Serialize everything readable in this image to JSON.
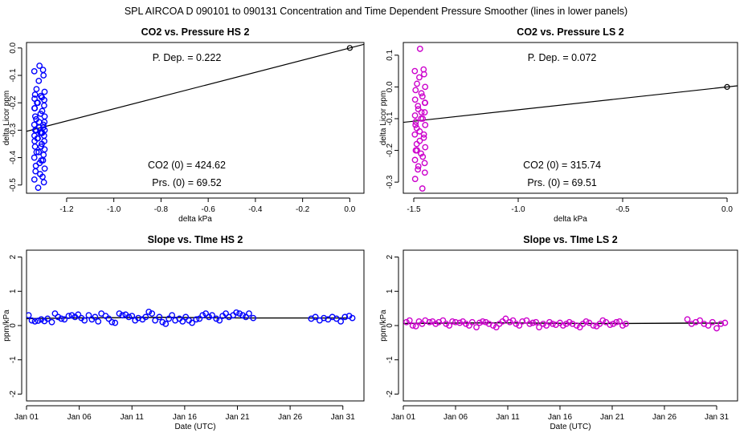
{
  "figure": {
    "title": "SPL   AIRCOA D   090101 to 090131   Concentration and Time Dependent Pressure Smoother (lines in lower panels)"
  },
  "colors": {
    "hs": "#0000ff",
    "ls": "#cc00cc",
    "line": "#000000",
    "origin": "#000000"
  },
  "chart_data": [
    {
      "type": "scatter",
      "title": "CO2 vs. Pressure HS 2",
      "xlabel": "delta kPa",
      "ylabel": "delta Licor ppm",
      "xlim": [
        -1.37,
        0.06
      ],
      "ylim": [
        -0.53,
        0.02
      ],
      "xticks": [
        -1.2,
        -1.0,
        -0.8,
        -0.6,
        -0.4,
        -0.2,
        0.0
      ],
      "xtick_labels": [
        "-1.2",
        "-1.0",
        "-0.8",
        "-0.6",
        "-0.4",
        "-0.2",
        "0.0"
      ],
      "yticks": [
        0.0,
        -0.1,
        -0.2,
        -0.3,
        -0.4,
        -0.5
      ],
      "ytick_labels": [
        "0.0",
        "-0.1",
        "-0.2",
        "-0.3",
        "-0.4",
        "-0.5"
      ],
      "slope": 0.222,
      "origin_point": [
        0.0,
        0.0
      ],
      "x_center": -1.315,
      "x_spread": 0.022,
      "y_values": [
        -0.065,
        -0.08,
        -0.085,
        -0.1,
        -0.12,
        -0.15,
        -0.16,
        -0.17,
        -0.175,
        -0.18,
        -0.185,
        -0.19,
        -0.2,
        -0.2,
        -0.21,
        -0.22,
        -0.23,
        -0.24,
        -0.25,
        -0.25,
        -0.26,
        -0.27,
        -0.28,
        -0.28,
        -0.29,
        -0.29,
        -0.3,
        -0.3,
        -0.3,
        -0.31,
        -0.31,
        -0.32,
        -0.32,
        -0.33,
        -0.33,
        -0.34,
        -0.34,
        -0.35,
        -0.36,
        -0.36,
        -0.37,
        -0.38,
        -0.38,
        -0.39,
        -0.4,
        -0.41,
        -0.42,
        -0.43,
        -0.44,
        -0.45,
        -0.46,
        -0.47,
        -0.48,
        -0.49,
        -0.51,
        -0.2,
        -0.27,
        -0.22,
        -0.31,
        -0.41
      ],
      "series_color": "hs",
      "annotations": {
        "p_dep": "P. Dep. =  0.222",
        "co2_0": "CO2 (0) =  424.62",
        "prs_0": "Prs. (0) =  69.52"
      }
    },
    {
      "type": "scatter",
      "title": "CO2 vs. Pressure LS 2",
      "xlabel": "delta kPa",
      "ylabel": "delta Licor ppm",
      "xlim": [
        -1.55,
        0.05
      ],
      "ylim": [
        -0.335,
        0.14
      ],
      "xticks": [
        -1.5,
        -1.0,
        -0.5,
        0.0
      ],
      "xtick_labels": [
        "-1.5",
        "-1.0",
        "-0.5",
        "0.0"
      ],
      "yticks": [
        0.1,
        0.0,
        -0.1,
        -0.2,
        -0.3
      ],
      "ytick_labels": [
        "0.1",
        "0.0",
        "-0.1",
        "-0.2",
        "-0.3"
      ],
      "slope": 0.072,
      "origin_point": [
        0.0,
        0.0
      ],
      "x_center": -1.47,
      "x_spread": 0.025,
      "y_values": [
        0.12,
        0.055,
        0.05,
        0.04,
        0.03,
        0.01,
        0.0,
        -0.01,
        -0.02,
        -0.03,
        -0.04,
        -0.05,
        -0.06,
        -0.07,
        -0.08,
        -0.09,
        -0.1,
        -0.1,
        -0.11,
        -0.12,
        -0.13,
        -0.14,
        -0.15,
        -0.15,
        -0.16,
        -0.17,
        -0.18,
        -0.19,
        -0.2,
        -0.21,
        -0.22,
        -0.23,
        -0.24,
        -0.25,
        -0.26,
        -0.27,
        -0.29,
        -0.32,
        -0.08,
        -0.12,
        -0.05,
        -0.2
      ],
      "series_color": "ls",
      "annotations": {
        "p_dep": "P. Dep. =  0.072",
        "co2_0": "CO2 (0) =  315.74",
        "prs_0": "Prs. (0) =  69.51"
      }
    },
    {
      "type": "scatter",
      "title": "Slope vs. TIme HS 2",
      "xlabel": "Date (UTC)",
      "ylabel": "ppm/kPa",
      "xlim": [
        0,
        32
      ],
      "ylim": [
        -2.2,
        2.2
      ],
      "xticks": [
        0,
        5,
        10,
        15,
        20,
        25,
        30
      ],
      "xtick_labels": [
        "Jan 01",
        "Jan 06",
        "Jan 11",
        "Jan 16",
        "Jan 21",
        "Jan 26",
        "Jan 31"
      ],
      "yticks": [
        2,
        1,
        0,
        -1,
        -2
      ],
      "ytick_labels": [
        "2",
        "1",
        "0",
        "-1",
        "-2"
      ],
      "line_segments": [
        {
          "x": [
            0,
            4,
            9,
            13,
            17,
            21,
            27,
            30.5
          ],
          "y": [
            0.2,
            0.22,
            0.23,
            0.24,
            0.23,
            0.22,
            0.22,
            0.22
          ]
        }
      ],
      "points_x": [
        0.2,
        0.5,
        0.8,
        1.1,
        1.4,
        1.7,
        2.0,
        2.4,
        2.7,
        3.0,
        3.3,
        3.6,
        4.0,
        4.3,
        4.6,
        4.9,
        5.2,
        5.5,
        5.9,
        6.2,
        6.5,
        6.8,
        7.1,
        7.5,
        7.8,
        8.1,
        8.4,
        8.8,
        9.1,
        9.4,
        9.7,
        10.0,
        10.3,
        10.6,
        11.0,
        11.3,
        11.6,
        11.9,
        12.2,
        12.6,
        12.9,
        13.2,
        13.5,
        13.8,
        14.1,
        14.5,
        14.8,
        15.1,
        15.4,
        15.7,
        16.1,
        16.4,
        16.7,
        17.0,
        17.3,
        17.6,
        18.0,
        18.3,
        18.6,
        18.9,
        19.2,
        19.6,
        19.9,
        20.2,
        20.5,
        20.8,
        21.1,
        21.5,
        27.0,
        27.4,
        27.8,
        28.2,
        28.6,
        29.0,
        29.4,
        29.8,
        30.2,
        30.6,
        30.9
      ],
      "points_y": [
        0.3,
        0.15,
        0.12,
        0.14,
        0.18,
        0.13,
        0.2,
        0.1,
        0.35,
        0.25,
        0.2,
        0.18,
        0.28,
        0.3,
        0.25,
        0.32,
        0.22,
        0.15,
        0.3,
        0.18,
        0.25,
        0.12,
        0.35,
        0.28,
        0.2,
        0.1,
        0.08,
        0.35,
        0.3,
        0.32,
        0.25,
        0.28,
        0.15,
        0.22,
        0.18,
        0.25,
        0.4,
        0.35,
        0.15,
        0.25,
        0.1,
        0.05,
        0.2,
        0.3,
        0.15,
        0.2,
        0.12,
        0.25,
        0.15,
        0.08,
        0.18,
        0.2,
        0.3,
        0.35,
        0.25,
        0.3,
        0.2,
        0.15,
        0.28,
        0.35,
        0.25,
        0.3,
        0.38,
        0.35,
        0.3,
        0.25,
        0.35,
        0.22,
        0.2,
        0.25,
        0.15,
        0.22,
        0.18,
        0.25,
        0.2,
        0.12,
        0.25,
        0.28,
        0.22
      ],
      "series_color": "hs"
    },
    {
      "type": "scatter",
      "title": "Slope vs. TIme LS 2",
      "xlabel": "Date (UTC)",
      "ylabel": "ppm/kPa",
      "xlim": [
        0,
        32
      ],
      "ylim": [
        -2.2,
        2.2
      ],
      "xticks": [
        0,
        5,
        10,
        15,
        20,
        25,
        30
      ],
      "xtick_labels": [
        "Jan 01",
        "Jan 06",
        "Jan 11",
        "Jan 16",
        "Jan 21",
        "Jan 26",
        "Jan 31"
      ],
      "yticks": [
        2,
        1,
        0,
        -1,
        -2
      ],
      "ytick_labels": [
        "2",
        "1",
        "0",
        "-1",
        "-2"
      ],
      "line_segments": [
        {
          "x": [
            0,
            4,
            9,
            13,
            17,
            21,
            27,
            30.5
          ],
          "y": [
            0.06,
            0.07,
            0.08,
            0.07,
            0.06,
            0.06,
            0.07,
            0.07
          ]
        }
      ],
      "points_x": [
        0.3,
        0.6,
        0.9,
        1.2,
        1.5,
        1.8,
        2.1,
        2.5,
        2.8,
        3.1,
        3.4,
        3.8,
        4.1,
        4.4,
        4.7,
        5.0,
        5.4,
        5.7,
        6.0,
        6.3,
        6.6,
        7.0,
        7.3,
        7.6,
        7.9,
        8.2,
        8.6,
        8.9,
        9.2,
        9.5,
        9.8,
        10.2,
        10.5,
        10.8,
        11.1,
        11.4,
        11.8,
        12.1,
        12.4,
        12.7,
        13.0,
        13.4,
        13.7,
        14.0,
        14.3,
        14.6,
        15.0,
        15.3,
        15.6,
        15.9,
        16.2,
        16.6,
        16.9,
        17.2,
        17.5,
        17.8,
        18.2,
        18.5,
        18.8,
        19.1,
        19.4,
        19.8,
        20.1,
        20.4,
        20.7,
        21.0,
        21.3,
        27.2,
        27.6,
        28.0,
        28.4,
        28.8,
        29.2,
        29.6,
        30.0,
        30.4,
        30.8
      ],
      "points_y": [
        0.1,
        0.15,
        0.0,
        -0.02,
        0.12,
        0.05,
        0.15,
        0.1,
        0.12,
        0.05,
        0.1,
        0.15,
        0.05,
        0.0,
        0.12,
        0.1,
        0.08,
        0.12,
        0.05,
        0.0,
        0.1,
        -0.05,
        0.08,
        0.12,
        0.1,
        0.05,
        0.0,
        -0.05,
        0.05,
        0.12,
        0.2,
        0.1,
        0.15,
        0.05,
        0.0,
        0.12,
        0.15,
        0.05,
        0.08,
        0.1,
        -0.05,
        0.05,
        0.0,
        0.1,
        0.05,
        0.02,
        0.08,
        0.0,
        0.05,
        0.1,
        0.05,
        0.0,
        -0.05,
        0.05,
        0.12,
        0.08,
        0.0,
        -0.02,
        0.05,
        0.15,
        0.1,
        0.02,
        0.05,
        0.1,
        0.12,
        0.0,
        0.05,
        0.18,
        0.05,
        0.1,
        0.15,
        0.05,
        0.0,
        0.1,
        -0.08,
        0.05,
        0.08
      ],
      "series_color": "ls"
    }
  ]
}
